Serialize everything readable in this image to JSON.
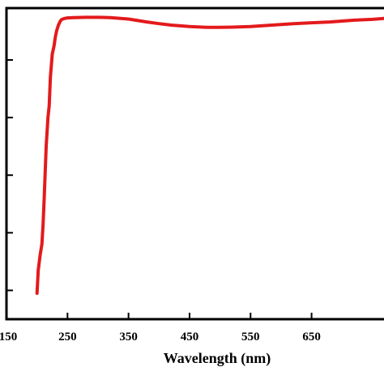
{
  "chart_data": {
    "type": "line",
    "title": "",
    "xlabel": "Wavelength (nm)",
    "ylabel": "",
    "xlim": [
      150,
      774
    ],
    "ylim": [
      0,
      1.08
    ],
    "x_ticks": [
      150,
      250,
      350,
      450,
      550,
      650
    ],
    "x_tick_labels": [
      "150",
      "250",
      "350",
      "450",
      "550",
      "650"
    ],
    "y_ticks": [
      0.1,
      0.3,
      0.5,
      0.7,
      0.9,
      1.1
    ],
    "grid": false,
    "legend": "none",
    "series": [
      {
        "color": "#e31a1c",
        "x": [
          200,
          202,
          205,
          208,
          210,
          212,
          215,
          218,
          220,
          222,
          225,
          228,
          230,
          232,
          235,
          238,
          240,
          245,
          250,
          260,
          280,
          300,
          320,
          350,
          380,
          400,
          420,
          450,
          480,
          500,
          520,
          550,
          580,
          600,
          620,
          650,
          680,
          700,
          720,
          750,
          774
        ],
        "y": [
          0.09,
          0.17,
          0.22,
          0.26,
          0.33,
          0.43,
          0.6,
          0.7,
          0.74,
          0.84,
          0.92,
          0.95,
          0.98,
          1.0,
          1.02,
          1.034,
          1.04,
          1.044,
          1.046,
          1.047,
          1.048,
          1.048,
          1.047,
          1.042,
          1.032,
          1.026,
          1.021,
          1.016,
          1.013,
          1.013,
          1.014,
          1.016,
          1.02,
          1.023,
          1.026,
          1.029,
          1.032,
          1.035,
          1.038,
          1.041,
          1.045
        ]
      }
    ]
  }
}
